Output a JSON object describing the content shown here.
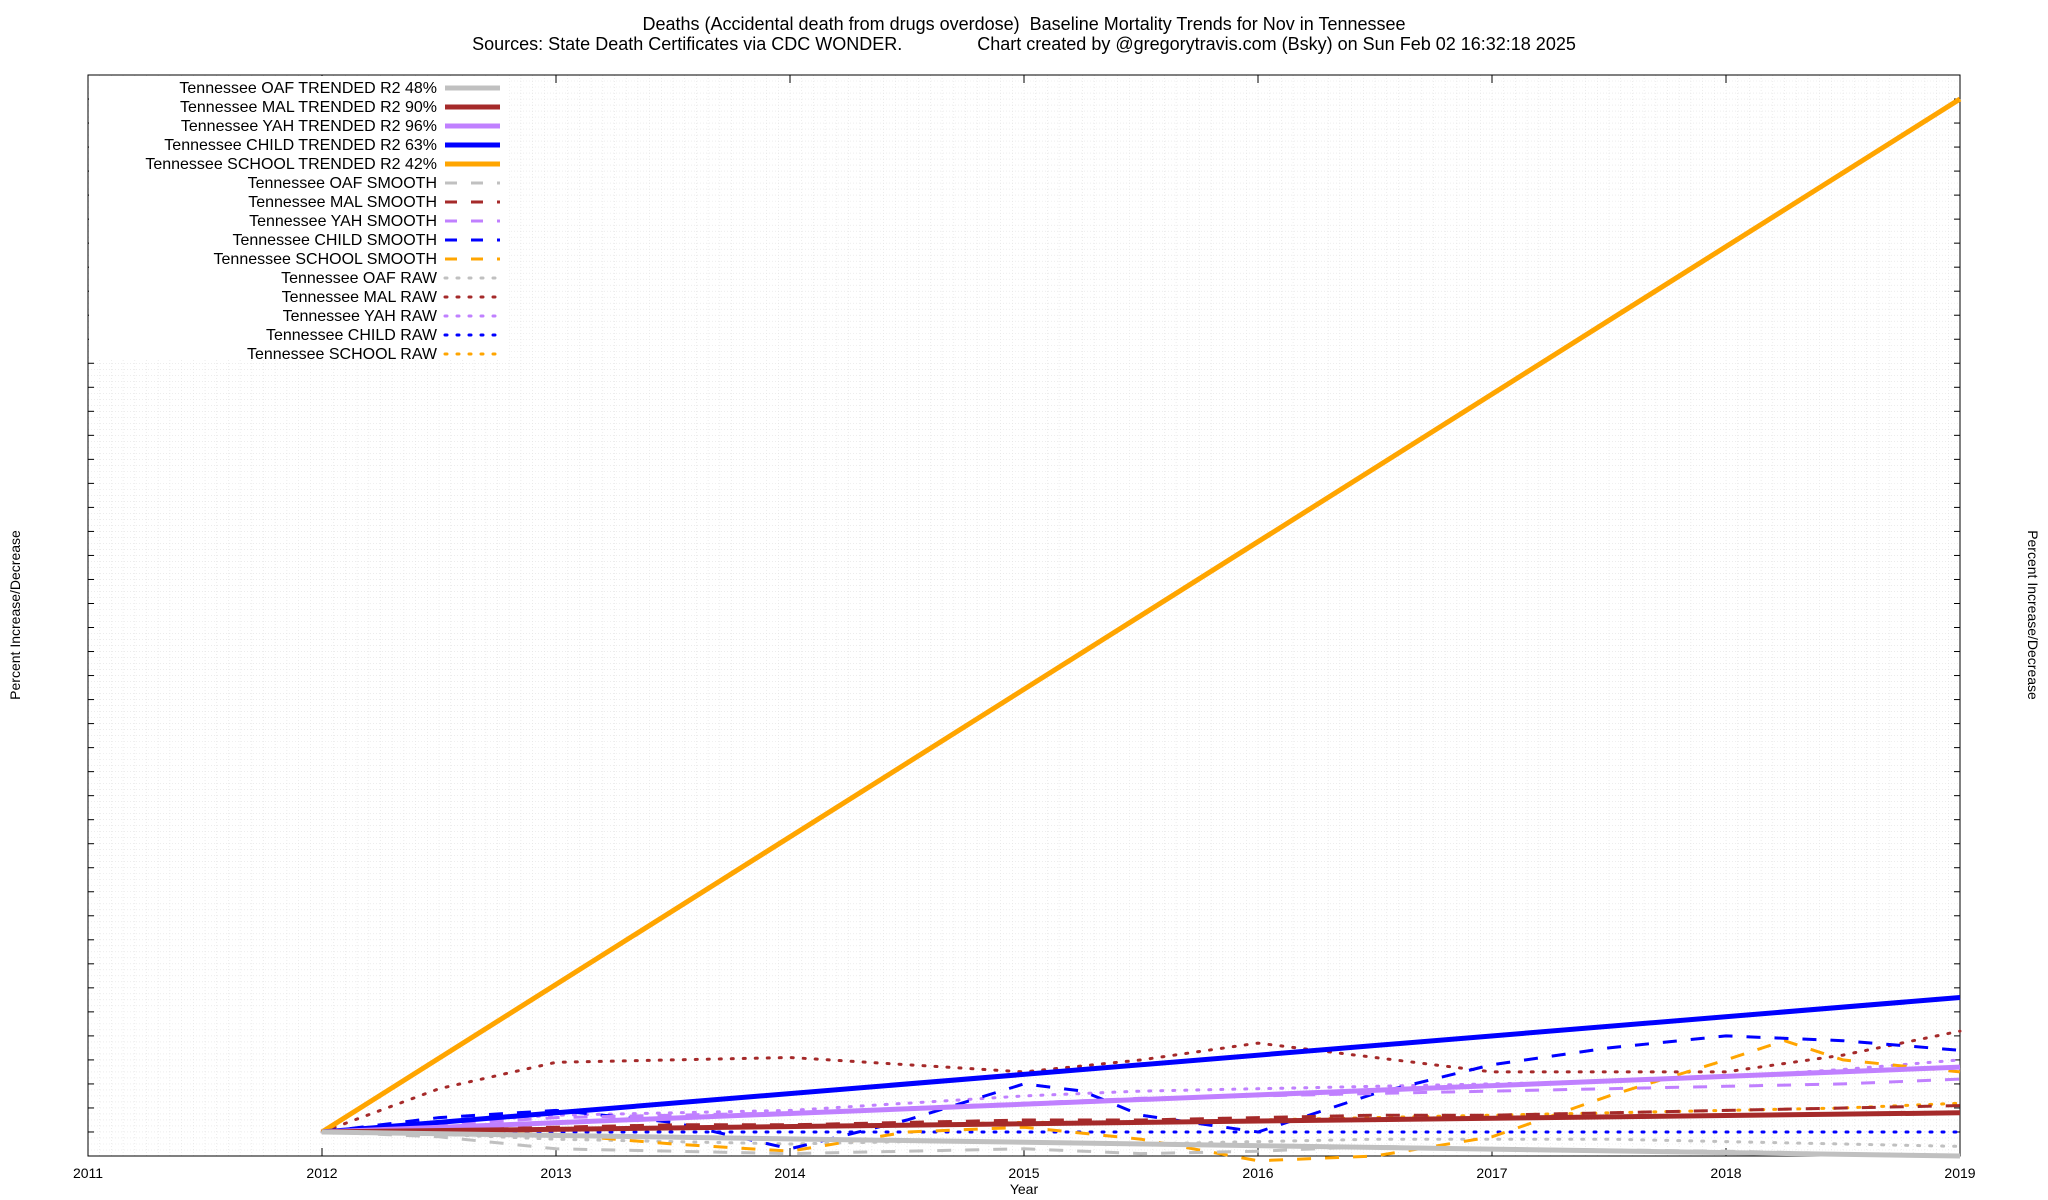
{
  "title": {
    "line1": "Deaths (Accidental death from drugs overdose)  Baseline Mortality Trends for Nov in Tennessee",
    "line2": "Sources: State Death Certificates via CDC WONDER.               Chart created by @gregorytravis.com (Bsky) on Sun Feb 02 16:32:18 2025"
  },
  "chart_data": {
    "type": "line",
    "xlabel": "Year",
    "ylabel": "Percent Increase/Decrease",
    "xlim": [
      2011,
      2019
    ],
    "ylim": [
      -100,
      4400
    ],
    "x_ticks": [
      "2011",
      "2012",
      "2013",
      "2014",
      "2015",
      "2016",
      "2017",
      "2018",
      "2019"
    ],
    "grid": true,
    "legend_position": "top-left",
    "series": [
      {
        "name": "Tennessee OAF TRENDED R2  48%",
        "color": "#c0c0c0",
        "style": "solid",
        "width": 5,
        "x": [
          2012,
          2019
        ],
        "y": [
          0,
          -100
        ]
      },
      {
        "name": "Tennessee MAL TRENDED R2  90%",
        "color": "#a52a2a",
        "style": "solid",
        "width": 5,
        "x": [
          2012,
          2019
        ],
        "y": [
          0,
          80
        ]
      },
      {
        "name": "Tennessee YAH TRENDED R2  96%",
        "color": "#c080ff",
        "style": "solid",
        "width": 5,
        "x": [
          2012,
          2019
        ],
        "y": [
          0,
          270
        ]
      },
      {
        "name": "Tennessee CHILD TRENDED R2  63%",
        "color": "#0000ff",
        "style": "solid",
        "width": 5,
        "x": [
          2012,
          2019
        ],
        "y": [
          0,
          560
        ]
      },
      {
        "name": "Tennessee SCHOOL TRENDED R2  42%",
        "color": "#ffa500",
        "style": "solid",
        "width": 5,
        "x": [
          2012,
          2019
        ],
        "y": [
          0,
          4300
        ]
      },
      {
        "name": "Tennessee OAF SMOOTH",
        "color": "#c0c0c0",
        "style": "dashed",
        "width": 3,
        "x": [
          2012,
          2012.5,
          2013,
          2013.5,
          2014,
          2014.5,
          2015,
          2015.5,
          2016,
          2016.5,
          2017,
          2017.5,
          2018,
          2018.5,
          2019
        ],
        "y": [
          0,
          -20,
          -70,
          -80,
          -90,
          -80,
          -70,
          -90,
          -80,
          -60,
          -70,
          -75,
          -80,
          -90,
          -100
        ]
      },
      {
        "name": "Tennessee MAL SMOOTH",
        "color": "#a52a2a",
        "style": "dashed",
        "width": 3,
        "x": [
          2012,
          2012.5,
          2013,
          2013.5,
          2014,
          2014.5,
          2015,
          2015.5,
          2016,
          2016.5,
          2017,
          2017.5,
          2018,
          2018.5,
          2019
        ],
        "y": [
          0,
          10,
          20,
          30,
          30,
          40,
          50,
          50,
          60,
          70,
          70,
          80,
          90,
          100,
          110
        ]
      },
      {
        "name": "Tennessee YAH SMOOTH",
        "color": "#c080ff",
        "style": "dashed",
        "width": 3,
        "x": [
          2012,
          2012.5,
          2013,
          2013.5,
          2014,
          2014.5,
          2015,
          2015.5,
          2016,
          2016.5,
          2017,
          2017.5,
          2018,
          2018.5,
          2019
        ],
        "y": [
          0,
          30,
          60,
          70,
          80,
          100,
          120,
          140,
          150,
          160,
          170,
          180,
          190,
          200,
          220
        ]
      },
      {
        "name": "Tennessee CHILD SMOOTH",
        "color": "#0000ff",
        "style": "dashed",
        "width": 3,
        "x": [
          2012,
          2012.5,
          2013,
          2013.5,
          2014,
          2014.5,
          2015,
          2015.25,
          2015.5,
          2016,
          2016.5,
          2017,
          2017.5,
          2018,
          2018.5,
          2019
        ],
        "y": [
          0,
          60,
          90,
          40,
          -70,
          50,
          200,
          170,
          70,
          0,
          160,
          280,
          350,
          400,
          380,
          340
        ]
      },
      {
        "name": "Tennessee SCHOOL SMOOTH",
        "color": "#ffa500",
        "style": "dashed",
        "width": 3,
        "x": [
          2012,
          2012.5,
          2013,
          2013.5,
          2014,
          2014.5,
          2015,
          2015.5,
          2016,
          2016.5,
          2017,
          2017.5,
          2018,
          2018.25,
          2018.5,
          2019
        ],
        "y": [
          0,
          0,
          -10,
          -50,
          -80,
          0,
          20,
          -30,
          -120,
          -100,
          -20,
          150,
          300,
          380,
          300,
          250
        ]
      },
      {
        "name": "Tennessee OAF RAW",
        "color": "#c0c0c0",
        "style": "dotted",
        "width": 3,
        "x": [
          2012,
          2012.5,
          2013,
          2013.5,
          2014,
          2014.5,
          2015,
          2015.5,
          2016,
          2016.5,
          2017,
          2017.5,
          2018,
          2018.5,
          2019
        ],
        "y": [
          0,
          -10,
          -30,
          -40,
          -50,
          -40,
          -40,
          -50,
          -40,
          -30,
          -30,
          -30,
          -40,
          -50,
          -60
        ]
      },
      {
        "name": "Tennessee MAL RAW",
        "color": "#a52a2a",
        "style": "dotted",
        "width": 3,
        "x": [
          2012,
          2012.5,
          2013,
          2013.5,
          2014,
          2014.5,
          2015,
          2015.5,
          2016,
          2016.5,
          2017,
          2017.5,
          2018,
          2018.5,
          2019
        ],
        "y": [
          0,
          180,
          290,
          300,
          310,
          280,
          250,
          300,
          370,
          310,
          250,
          250,
          250,
          320,
          420
        ]
      },
      {
        "name": "Tennessee YAH RAW",
        "color": "#c080ff",
        "style": "dotted",
        "width": 3,
        "x": [
          2012,
          2012.5,
          2013,
          2013.5,
          2014,
          2014.5,
          2015,
          2015.5,
          2016,
          2016.5,
          2017,
          2017.5,
          2018,
          2018.5,
          2019
        ],
        "y": [
          0,
          40,
          70,
          80,
          90,
          120,
          150,
          170,
          180,
          190,
          200,
          210,
          230,
          260,
          300
        ]
      },
      {
        "name": "Tennessee CHILD RAW",
        "color": "#0000ff",
        "style": "dotted",
        "width": 3,
        "x": [
          2012,
          2019
        ],
        "y": [
          0,
          0
        ]
      },
      {
        "name": "Tennessee SCHOOL RAW",
        "color": "#ffa500",
        "style": "dotted",
        "width": 3,
        "x": [
          2012,
          2012.5,
          2013,
          2013.5,
          2014,
          2014.5,
          2015,
          2015.5,
          2016,
          2016.5,
          2017,
          2017.5,
          2018,
          2018.5,
          2019
        ],
        "y": [
          0,
          10,
          10,
          20,
          20,
          30,
          40,
          40,
          50,
          60,
          70,
          80,
          90,
          100,
          120
        ]
      }
    ]
  }
}
